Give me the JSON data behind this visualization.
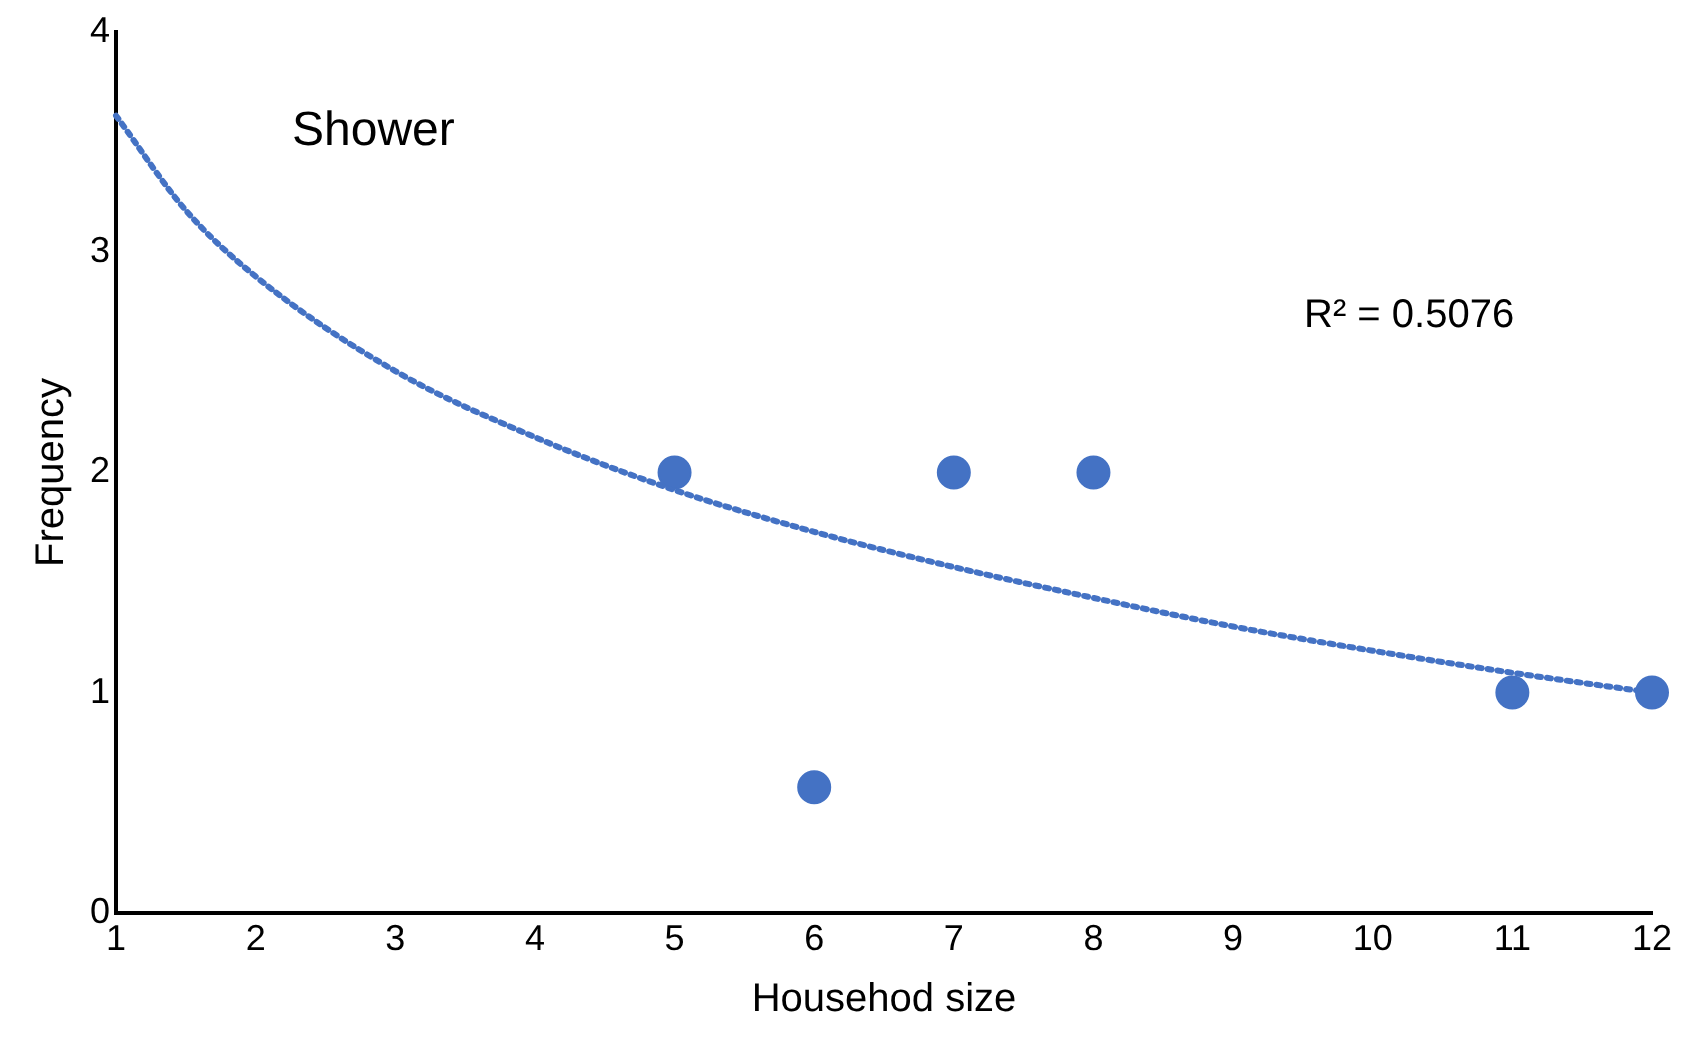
{
  "chart_data": {
    "type": "scatter",
    "title": "Shower",
    "xlabel": "Househod size",
    "ylabel": "Frequency",
    "annotations": [
      "R² = 0.5076"
    ],
    "xlim": [
      1,
      12
    ],
    "xticks": [
      1,
      2,
      3,
      4,
      5,
      6,
      7,
      8,
      9,
      10,
      11,
      12
    ],
    "ylim": [
      0,
      4
    ],
    "yticks": [
      0,
      1,
      2,
      3,
      4
    ],
    "grid": false,
    "legend": false,
    "marker": "circle",
    "series": [
      {
        "type": "scatter",
        "color": "#4472c4",
        "x": [
          5,
          6,
          7,
          8,
          11,
          12
        ],
        "values": [
          2,
          0.57,
          2,
          2,
          1,
          1
        ]
      },
      {
        "type": "line",
        "color": "#4472c4",
        "marker": "none",
        "line_style": "dotted",
        "x": [
          1,
          1.5,
          2,
          3,
          4,
          5,
          6,
          7,
          8,
          9,
          10,
          11,
          12
        ],
        "values": [
          3.62,
          3.19,
          2.89,
          2.46,
          2.16,
          1.92,
          1.73,
          1.57,
          1.43,
          1.3,
          1.19,
          1.09,
          1
        ]
      }
    ]
  }
}
